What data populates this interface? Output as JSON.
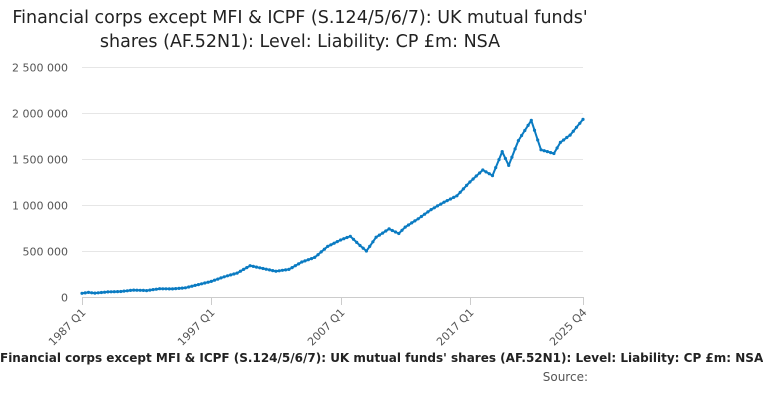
{
  "chart_data": {
    "type": "line",
    "title": "Financial corps except MFI & ICPF (S.124/5/6/7): UK mutual funds' shares (AF.52N1): Level: Liability: CP £m: NSA",
    "xlabel": "",
    "ylabel": "",
    "ylim": [
      0,
      2500000
    ],
    "y_ticks": [
      0,
      500000,
      1000000,
      1500000,
      2000000,
      2500000
    ],
    "y_tick_labels": [
      "0",
      "500 000",
      "1 000 000",
      "1 500 000",
      "2 000 000",
      "2 500 000"
    ],
    "x_ticks": [
      "1987 Q1",
      "1997 Q1",
      "2007 Q1",
      "2017 Q1",
      "2025 Q4"
    ],
    "x_range": [
      "1987 Q1",
      "2025 Q4"
    ],
    "grid": true,
    "legend": "none",
    "series": [
      {
        "name": "Financial corps except MFI & ICPF (S.124/5/6/7): UK mutual funds' shares (AF.52N1): Level: Liability: CP £m: NSA",
        "color": "#0a7bc2",
        "points": [
          [
            "1987 Q1",
            40000
          ],
          [
            "1987 Q3",
            50000
          ],
          [
            "1988 Q1",
            42000
          ],
          [
            "1989 Q1",
            55000
          ],
          [
            "1990 Q1",
            60000
          ],
          [
            "1991 Q1",
            75000
          ],
          [
            "1992 Q1",
            70000
          ],
          [
            "1993 Q1",
            90000
          ],
          [
            "1994 Q1",
            88000
          ],
          [
            "1995 Q1",
            100000
          ],
          [
            "1996 Q1",
            135000
          ],
          [
            "1997 Q1",
            170000
          ],
          [
            "1998 Q1",
            220000
          ],
          [
            "1999 Q1",
            260000
          ],
          [
            "2000 Q1",
            340000
          ],
          [
            "2001 Q1",
            310000
          ],
          [
            "2002 Q1",
            280000
          ],
          [
            "2003 Q1",
            300000
          ],
          [
            "2004 Q1",
            380000
          ],
          [
            "2005 Q1",
            430000
          ],
          [
            "2006 Q1",
            550000
          ],
          [
            "2007 Q1",
            620000
          ],
          [
            "2007 Q4",
            660000
          ],
          [
            "2008 Q3",
            560000
          ],
          [
            "2009 Q1",
            500000
          ],
          [
            "2009 Q4",
            650000
          ],
          [
            "2010 Q4",
            740000
          ],
          [
            "2011 Q3",
            690000
          ],
          [
            "2012 Q1",
            760000
          ],
          [
            "2013 Q1",
            850000
          ],
          [
            "2014 Q1",
            950000
          ],
          [
            "2015 Q1",
            1030000
          ],
          [
            "2016 Q1",
            1100000
          ],
          [
            "2017 Q1",
            1250000
          ],
          [
            "2018 Q1",
            1380000
          ],
          [
            "2018 Q4",
            1320000
          ],
          [
            "2019 Q3",
            1580000
          ],
          [
            "2020 Q1",
            1430000
          ],
          [
            "2020 Q4",
            1700000
          ],
          [
            "2021 Q4",
            1920000
          ],
          [
            "2022 Q3",
            1600000
          ],
          [
            "2023 Q1",
            1580000
          ],
          [
            "2023 Q3",
            1560000
          ],
          [
            "2024 Q1",
            1680000
          ],
          [
            "2024 Q4",
            1760000
          ],
          [
            "2025 Q4",
            1930000
          ]
        ]
      }
    ]
  },
  "footer": {
    "title": "Financial corps except MFI & ICPF (S.124/5/6/7): UK mutual funds' shares (AF.52N1): Level: Liability: CP £m: NSA",
    "source": "Source:"
  }
}
